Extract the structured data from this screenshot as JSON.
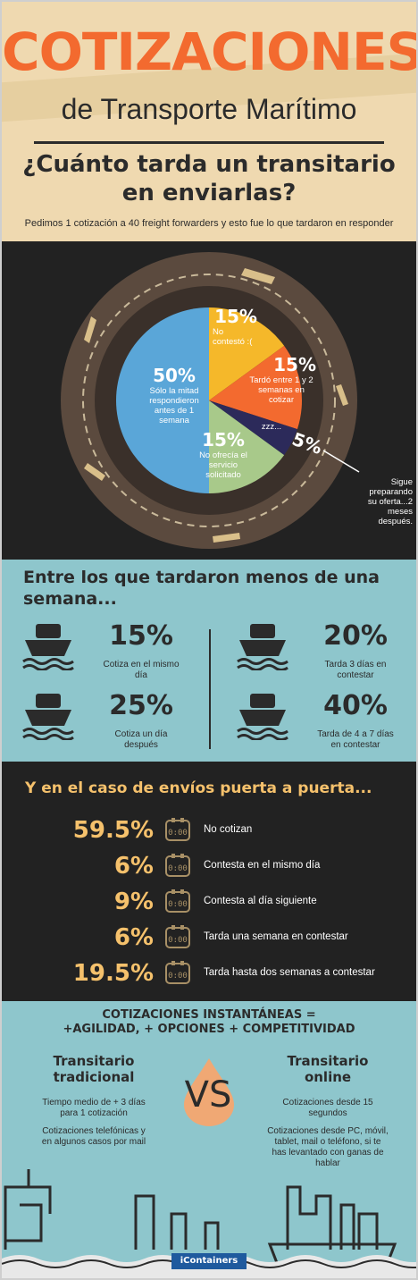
{
  "header": {
    "title": "COTIZACIONES",
    "subtitle": "de Transporte Marítimo",
    "question_line1": "¿Cuánto tarda un transitario",
    "question_line2": "en enviarlas?",
    "intro": "Pedimos 1 cotización a 40 freight forwarders y esto fue lo que tardaron en responder"
  },
  "chart_data": {
    "type": "pie",
    "slices": [
      {
        "value": 15,
        "pct_label": "15%",
        "label_lines": [
          "No",
          "contestó :("
        ]
      },
      {
        "value": 15,
        "pct_label": "15%",
        "label_lines": [
          "Tardó entre 1 y 2",
          "semanas en",
          "cotizar"
        ]
      },
      {
        "value": 5,
        "pct_label": "5%",
        "label_lines": [
          "zzz..."
        ]
      },
      {
        "value": 15,
        "pct_label": "15%",
        "label_lines": [
          "No ofrecía el",
          "servicio",
          "solicitado"
        ]
      },
      {
        "value": 50,
        "pct_label": "50%",
        "label_lines": [
          "Sólo la mitad",
          "respondieron",
          "antes de 1",
          "semana"
        ]
      }
    ],
    "colors": [
      "#f5b82a",
      "#f36a2f",
      "#2c2a5a",
      "#a8c98a",
      "#5aa6d8"
    ],
    "annotation": [
      "Sigue",
      "preparando",
      "su oferta...2",
      "meses",
      "después."
    ]
  },
  "week": {
    "title_line1": "Entre los que tardaron menos de una",
    "title_line2": "semana...",
    "stats": [
      {
        "pct": "15%",
        "label_lines": [
          "Cotiza en el mismo",
          "día"
        ]
      },
      {
        "pct": "20%",
        "label_lines": [
          "Tarda 3 días en",
          "contestar"
        ]
      },
      {
        "pct": "25%",
        "label_lines": [
          "Cotiza un día",
          "después"
        ]
      },
      {
        "pct": "40%",
        "label_lines": [
          "Tarda de 4 a 7 días",
          "en contestar"
        ]
      }
    ]
  },
  "door": {
    "title": "Y en el caso de envíos puerta a puerta...",
    "rows": [
      {
        "pct": "59.5%",
        "label": "No cotizan"
      },
      {
        "pct": "6%",
        "label": "Contesta en el mismo día"
      },
      {
        "pct": "9%",
        "label": "Contesta al día siguiente"
      },
      {
        "pct": "6%",
        "label": "Tarda una semana en contestar"
      },
      {
        "pct": "19.5%",
        "label": "Tarda hasta dos semanas a contestar"
      }
    ],
    "icon": "clock-icon"
  },
  "bottom": {
    "title_line1": "COTIZACIONES INSTANTÁNEAS =",
    "title_line2": "+AGILIDAD, + OPCIONES + COMPETITIVIDAD",
    "left_heading_1": "Transitario",
    "left_heading_2": "tradicional",
    "left_p1_1": "Tiempo medio de + 3 días",
    "left_p1_2": "para 1 cotización",
    "left_p2_1": "Cotizaciones telefónicas y",
    "left_p2_2": "en algunos casos por mail",
    "vs": "VS",
    "right_heading_1": "Transitario",
    "right_heading_2": "online",
    "right_p1_1": "Cotizaciones desde 15",
    "right_p1_2": "segundos",
    "right_p2_1": "Cotizaciones desde PC, móvil,",
    "right_p2_2": "tablet, mail o teléfono, si te",
    "right_p2_3": "has levantado con ganas de",
    "right_p2_4": "hablar",
    "logo": "iContainers"
  },
  "colors": {
    "orange": "#f36a2f",
    "beige": "#efd9b0",
    "dark": "#222222",
    "teal": "#8ec6cc",
    "gold": "#f5c16c"
  }
}
